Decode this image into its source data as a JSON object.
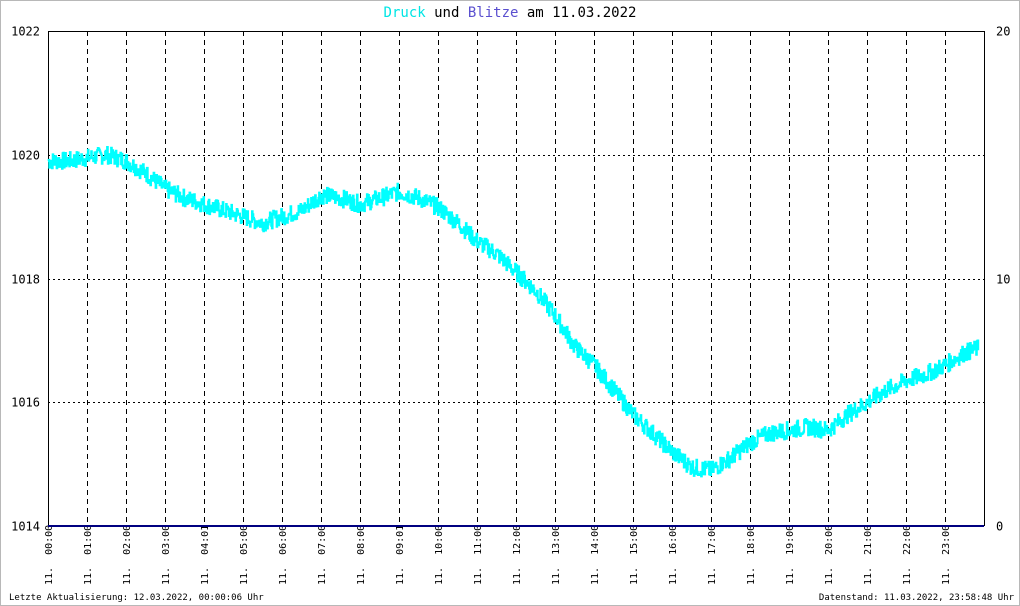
{
  "title": {
    "series1": "Druck",
    "connector": "und",
    "series2": "Blitze",
    "date_prefix": "am",
    "date": "11.03.2022"
  },
  "footer": {
    "left": "Letzte Aktualisierung: 12.03.2022, 00:00:06 Uhr",
    "right": "Datenstand: 11.03.2022, 23:58:48 Uhr"
  },
  "colors": {
    "druck": "#00FFFF",
    "blitze": "#000080",
    "grid": "#000000",
    "title_druck": "#00E5E5",
    "title_blitze": "#5A4FCF"
  },
  "chart_data": {
    "type": "line",
    "title": "Druck und Blitze am 11.03.2022",
    "grid": true,
    "x_ticks": [
      "11. 00:00",
      "11. 01:00",
      "11. 02:00",
      "11. 03:00",
      "11. 04:01",
      "11. 05:00",
      "11. 06:00",
      "11. 07:00",
      "11. 08:00",
      "11. 09:01",
      "11. 10:00",
      "11. 11:00",
      "11. 12:00",
      "11. 13:00",
      "11. 14:00",
      "11. 15:00",
      "11. 16:00",
      "11. 17:00",
      "11. 18:00",
      "11. 19:00",
      "11. 20:00",
      "11. 21:00",
      "11. 22:00",
      "11. 23:00"
    ],
    "y_left": {
      "ylim": [
        1014,
        1022
      ],
      "ticks": [
        "1014",
        "1016",
        "1018",
        "1020",
        "1022"
      ]
    },
    "y_right": {
      "ylim": [
        0,
        20
      ],
      "ticks": [
        "0",
        "10",
        "20"
      ]
    },
    "series": [
      {
        "name": "Druck",
        "axis": "left",
        "x_hours": [
          0,
          0.5,
          1,
          1.5,
          2,
          2.5,
          3,
          3.5,
          4,
          4.5,
          5,
          5.5,
          6,
          6.5,
          7,
          7.5,
          8,
          8.5,
          9,
          9.5,
          10,
          10.5,
          11,
          11.5,
          12,
          12.5,
          13,
          13.5,
          14,
          14.5,
          15,
          15.5,
          16,
          16.5,
          17,
          17.5,
          18,
          18.5,
          19,
          19.5,
          20,
          20.5,
          21,
          21.5,
          22,
          22.5,
          23,
          23.5,
          24
        ],
        "values": [
          1019.9,
          1019.9,
          1019.95,
          1020.0,
          1019.9,
          1019.7,
          1019.45,
          1019.3,
          1019.2,
          1019.1,
          1019.0,
          1018.9,
          1019.0,
          1019.1,
          1019.35,
          1019.3,
          1019.2,
          1019.3,
          1019.4,
          1019.3,
          1019.15,
          1018.9,
          1018.6,
          1018.4,
          1018.1,
          1017.8,
          1017.4,
          1016.9,
          1016.6,
          1016.2,
          1015.8,
          1015.5,
          1015.2,
          1014.95,
          1014.9,
          1015.1,
          1015.35,
          1015.5,
          1015.55,
          1015.6,
          1015.55,
          1015.8,
          1016.0,
          1016.2,
          1016.35,
          1016.45,
          1016.6,
          1016.8,
          1016.9
        ]
      },
      {
        "name": "Blitze",
        "axis": "right",
        "x_hours": [
          0,
          24
        ],
        "values": [
          0,
          0
        ]
      }
    ]
  }
}
